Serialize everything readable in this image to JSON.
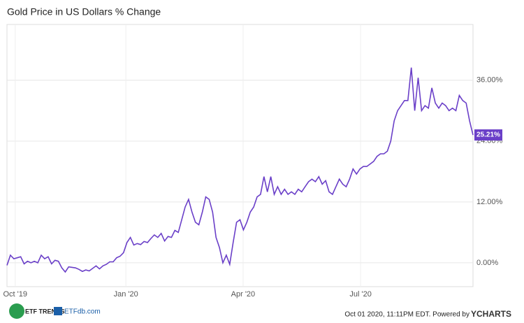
{
  "chart_data": {
    "type": "line",
    "title": "Gold Price in US Dollars % Change",
    "series": [
      {
        "name": "Gold Price in US Dollars % Change",
        "color": "#6a3fc8",
        "values": [
          -0.5,
          1.5,
          0.8,
          1.0,
          1.2,
          -0.2,
          0.3,
          0.0,
          0.3,
          0.0,
          1.5,
          0.8,
          1.2,
          -0.2,
          0.5,
          0.3,
          -1.0,
          -1.8,
          -0.8,
          -0.9,
          -1.0,
          -1.3,
          -1.7,
          -1.4,
          -1.6,
          -1.1,
          -0.6,
          -1.2,
          -0.6,
          -0.3,
          0.2,
          0.2,
          1.0,
          1.3,
          2.0,
          4.0,
          5.0,
          3.5,
          3.8,
          3.6,
          4.2,
          4.0,
          4.8,
          5.5,
          5.0,
          5.8,
          4.3,
          5.2,
          5.0,
          6.4,
          6.0,
          8.5,
          11.0,
          12.5,
          10,
          8,
          7.5,
          10,
          13,
          12.5,
          10,
          5,
          3.0,
          0,
          1.5,
          -0.3,
          4,
          8,
          8.5,
          6.5,
          8.0,
          10,
          11,
          13,
          13.5,
          17.0,
          14.0,
          17.0,
          13.5,
          15.0,
          13.5,
          14.5,
          13.5,
          14.0,
          13.5,
          14.5,
          14.0,
          15.0,
          16.0,
          16.5,
          16.0,
          17.0,
          15.5,
          16.2,
          14.0,
          13.5,
          15.0,
          16.5,
          15.5,
          15.0,
          16.5,
          18.5,
          17.5,
          18.5,
          19.0,
          19.0,
          19.5,
          20.0,
          21.0,
          21.5,
          21.5,
          22.0,
          24,
          28,
          30,
          31,
          32,
          32,
          38.5,
          30,
          36.5,
          30,
          31,
          30.5,
          34.5,
          31.5,
          30.5,
          31.5,
          31,
          30,
          30.5,
          30,
          33,
          32,
          31.5,
          28,
          25.21
        ]
      }
    ],
    "end_label": "25.21%",
    "xlim": [
      0,
      136
    ],
    "xticks": [
      {
        "value": 2.4,
        "label": "Oct '19"
      },
      {
        "value": 34.7,
        "label": "Jan '20"
      },
      {
        "value": 68.9,
        "label": "Apr '20"
      },
      {
        "value": 103.2,
        "label": "Jul '20"
      }
    ],
    "ylim": [
      -4.7,
      47
    ],
    "yticks": [
      {
        "value": 0,
        "label": "0.00%"
      },
      {
        "value": 12,
        "label": "12.00%"
      },
      {
        "value": 24,
        "label": "24.00%"
      },
      {
        "value": 36,
        "label": "36.00%"
      }
    ],
    "grid": true
  },
  "footer": {
    "timestamp": "Oct 01 2020, 11:11PM EDT. Powered by",
    "brand": "YCHARTS",
    "logo1": "ETF TRENDS",
    "logo2": "ETFdb.com"
  }
}
